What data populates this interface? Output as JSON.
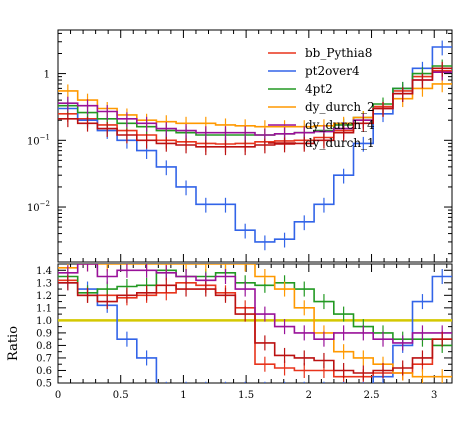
{
  "chart_data": [
    {
      "type": "line",
      "drawstyle": "steps",
      "yscale": "log",
      "xlim": [
        0,
        3.1416
      ],
      "ylim": [
        0.0015,
        4.5
      ],
      "yticks": [
        {
          "value": 0.01,
          "base": "10",
          "exp": "−2"
        },
        {
          "value": 0.1,
          "base": "10",
          "exp": "−1"
        },
        {
          "value": 1,
          "label": "1"
        }
      ],
      "legend_position": "top-right",
      "x_edges": [
        0,
        0.157,
        0.314,
        0.471,
        0.628,
        0.785,
        0.942,
        1.1,
        1.257,
        1.414,
        1.571,
        1.728,
        1.885,
        2.042,
        2.199,
        2.356,
        2.513,
        2.67,
        2.827,
        2.985,
        3.142
      ],
      "series": [
        {
          "name": "bb_Pythia8",
          "color": "#e8341c",
          "values": [
            0.25,
            0.21,
            0.17,
            0.14,
            0.12,
            0.1,
            0.095,
            0.09,
            0.088,
            0.09,
            0.095,
            0.098,
            0.1,
            0.11,
            0.14,
            0.2,
            0.32,
            0.55,
            0.9,
            1.1
          ]
        },
        {
          "name": "pt2over4",
          "color": "#3264e8",
          "values": [
            0.3,
            0.2,
            0.14,
            0.1,
            0.07,
            0.04,
            0.02,
            0.011,
            0.011,
            0.0045,
            0.003,
            0.0033,
            0.006,
            0.011,
            0.03,
            0.09,
            0.25,
            0.6,
            1.2,
            2.5
          ]
        },
        {
          "name": "4pt2",
          "color": "#229922",
          "values": [
            0.33,
            0.26,
            0.21,
            0.18,
            0.16,
            0.14,
            0.13,
            0.12,
            0.12,
            0.12,
            0.12,
            0.125,
            0.13,
            0.14,
            0.17,
            0.22,
            0.35,
            0.6,
            1.0,
            1.3
          ]
        },
        {
          "name": "dy_durch_2",
          "color": "#ff9900",
          "values": [
            0.55,
            0.4,
            0.3,
            0.24,
            0.2,
            0.19,
            0.18,
            0.18,
            0.17,
            0.165,
            0.16,
            0.16,
            0.16,
            0.165,
            0.18,
            0.22,
            0.3,
            0.42,
            0.6,
            0.7
          ]
        },
        {
          "name": "dy_durch_4",
          "color": "#991199",
          "values": [
            0.36,
            0.33,
            0.27,
            0.21,
            0.18,
            0.15,
            0.14,
            0.13,
            0.13,
            0.13,
            0.12,
            0.125,
            0.13,
            0.135,
            0.15,
            0.2,
            0.3,
            0.5,
            0.8,
            1.05
          ]
        },
        {
          "name": "dy_durch_1",
          "color": "#bb1111",
          "values": [
            0.21,
            0.18,
            0.15,
            0.12,
            0.1,
            0.09,
            0.085,
            0.08,
            0.08,
            0.08,
            0.085,
            0.088,
            0.09,
            0.1,
            0.13,
            0.18,
            0.3,
            0.5,
            0.8,
            1.2
          ]
        }
      ]
    },
    {
      "type": "line",
      "drawstyle": "steps",
      "ylabel": "Ratio",
      "xlim": [
        0,
        3.1416
      ],
      "ylim": [
        0.5,
        1.45
      ],
      "xticks": [
        "0",
        "0.5",
        "1",
        "1.5",
        "2",
        "2.5",
        "3"
      ],
      "xtick_values": [
        0,
        0.5,
        1,
        1.5,
        2,
        2.5,
        3
      ],
      "yticks": [
        "0.5",
        "0.6",
        "0.7",
        "0.8",
        "0.9",
        "1.0",
        "1.1",
        "1.2",
        "1.3",
        "1.4"
      ],
      "ytick_values": [
        0.5,
        0.6,
        0.7,
        0.8,
        0.9,
        1.0,
        1.1,
        1.2,
        1.3,
        1.4
      ],
      "reference_line": {
        "value": 1.0,
        "color": "#d4c800"
      },
      "x_edges": [
        0,
        0.157,
        0.314,
        0.471,
        0.628,
        0.785,
        0.942,
        1.1,
        1.257,
        1.414,
        1.571,
        1.728,
        1.885,
        2.042,
        2.199,
        2.356,
        2.513,
        2.67,
        2.827,
        2.985,
        3.142
      ],
      "series": [
        {
          "name": "bb_Pythia8",
          "color": "#e8341c",
          "values": [
            1.32,
            1.2,
            1.2,
            1.18,
            1.2,
            1.22,
            1.3,
            1.28,
            1.22,
            1.1,
            0.65,
            0.62,
            0.6,
            0.6,
            0.55,
            0.55,
            0.58,
            0.58,
            0.65,
            0.85
          ]
        },
        {
          "name": "pt2over4",
          "color": "#3264e8",
          "values": [
            1.3,
            1.25,
            1.12,
            0.85,
            0.7,
            0.45,
            0.45,
            0.45,
            0.45,
            0.45,
            0.45,
            0.45,
            0.45,
            0.45,
            0.45,
            0.45,
            0.55,
            0.8,
            1.15,
            1.35
          ]
        },
        {
          "name": "4pt2",
          "color": "#229922",
          "values": [
            1.35,
            1.22,
            1.25,
            1.27,
            1.28,
            1.4,
            1.35,
            1.35,
            1.38,
            1.3,
            1.28,
            1.3,
            1.25,
            1.15,
            1.05,
            0.95,
            0.9,
            0.85,
            0.85,
            0.8
          ]
        },
        {
          "name": "dy_durch_2",
          "color": "#ff9900",
          "values": [
            1.42,
            1.45,
            1.45,
            1.45,
            1.45,
            1.45,
            1.45,
            1.45,
            1.45,
            1.45,
            1.35,
            1.25,
            1.1,
            0.9,
            0.75,
            0.7,
            0.65,
            0.58,
            0.55,
            0.55
          ]
        },
        {
          "name": "dy_durch_4",
          "color": "#991199",
          "values": [
            1.38,
            1.45,
            1.35,
            1.4,
            1.4,
            1.38,
            1.35,
            1.32,
            1.35,
            1.25,
            1.05,
            0.95,
            0.9,
            0.85,
            0.9,
            0.9,
            0.85,
            0.82,
            0.9,
            0.9
          ]
        },
        {
          "name": "dy_durch_1",
          "color": "#bb1111",
          "values": [
            1.3,
            1.2,
            1.15,
            1.2,
            1.22,
            1.28,
            1.25,
            1.25,
            1.2,
            1.05,
            0.82,
            0.72,
            0.7,
            0.68,
            0.6,
            0.58,
            0.6,
            0.62,
            0.7,
            0.85
          ]
        }
      ]
    }
  ]
}
